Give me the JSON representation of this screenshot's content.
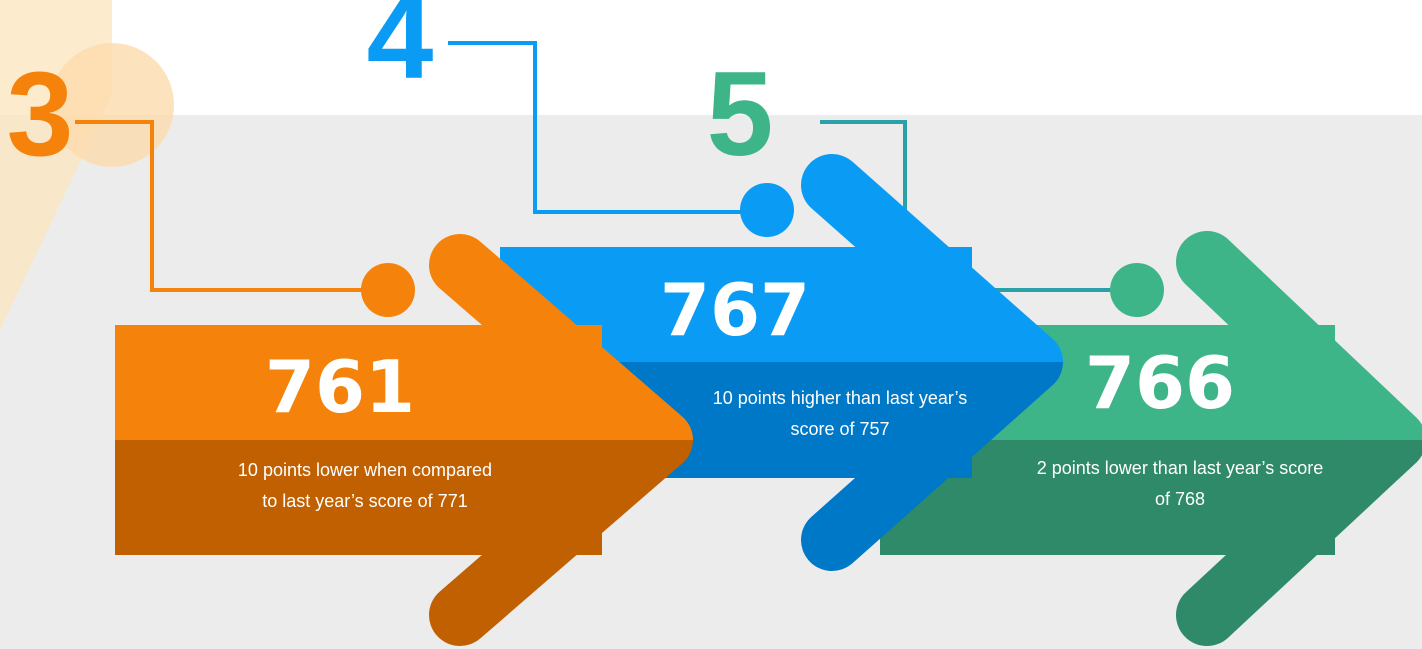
{
  "steps": [
    {
      "rank": 3,
      "score": 761,
      "description": "10 points lower when compared to last year’s score of 771"
    },
    {
      "rank": 4,
      "score": 767,
      "description": "10 points higher than last year’s score of 757"
    },
    {
      "rank": 5,
      "score": 766,
      "description": "2 points lower than last year’s score of 768"
    }
  ]
}
